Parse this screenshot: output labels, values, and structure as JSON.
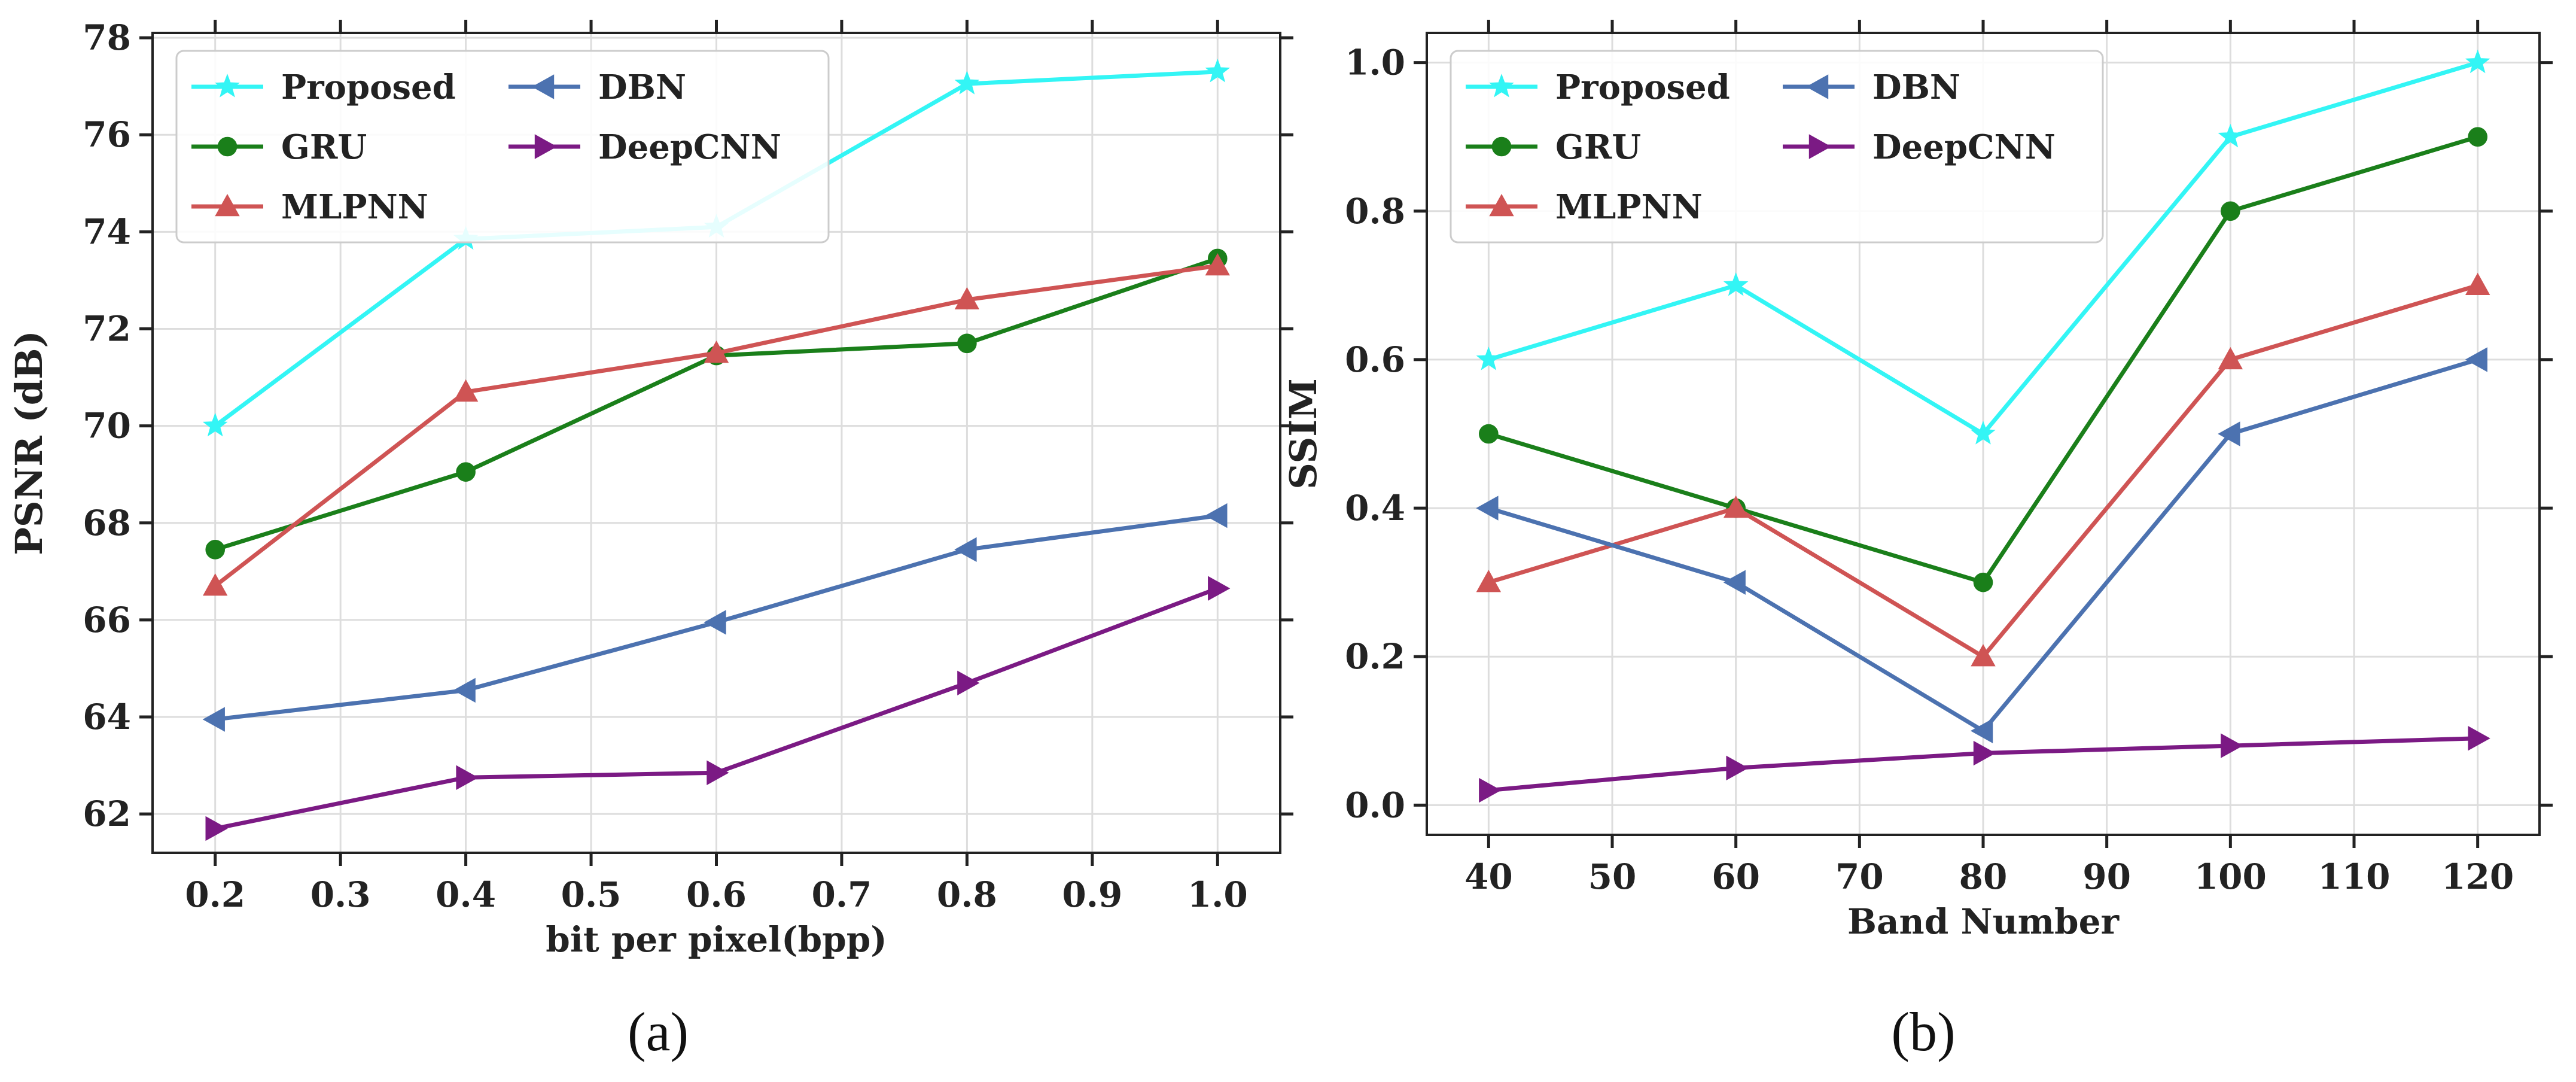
{
  "chart_data": [
    {
      "type": "line",
      "caption": "(a)",
      "title": "",
      "xlabel": "bit per pixel(bpp)",
      "ylabel": "PSNR (dB)",
      "xlim": [
        0.15,
        1.05
      ],
      "ylim": [
        61.2,
        78.1
      ],
      "xticks": [
        0.2,
        0.3,
        0.4,
        0.5,
        0.6,
        0.7,
        0.8,
        0.9,
        1.0
      ],
      "xtick_labels": [
        "0.2",
        "0.3",
        "0.4",
        "0.5",
        "0.6",
        "0.7",
        "0.8",
        "0.9",
        "1.0"
      ],
      "yticks": [
        62,
        64,
        66,
        68,
        70,
        72,
        74,
        76,
        78
      ],
      "ytick_labels": [
        "62",
        "64",
        "66",
        "68",
        "70",
        "72",
        "74",
        "76",
        "78"
      ],
      "grid": true,
      "legend_position": "top-left",
      "legend_columns": 2,
      "x": [
        0.2,
        0.4,
        0.6,
        0.8,
        1.0
      ],
      "series": [
        {
          "name": "Proposed",
          "color": "#33f5f5",
          "marker": "star",
          "values": [
            70.0,
            73.85,
            74.1,
            77.05,
            77.3
          ]
        },
        {
          "name": "GRU",
          "color": "#1a7f1a",
          "marker": "circle",
          "values": [
            67.45,
            69.05,
            71.45,
            71.7,
            73.45
          ]
        },
        {
          "name": "MLPNN",
          "color": "#cf5454",
          "marker": "triangle-up",
          "values": [
            66.7,
            70.7,
            71.5,
            72.6,
            73.3
          ]
        },
        {
          "name": "DBN",
          "color": "#4c72b0",
          "marker": "triangle-left",
          "values": [
            63.95,
            64.55,
            65.95,
            67.45,
            68.15
          ]
        },
        {
          "name": "DeepCNN",
          "color": "#7b1a84",
          "marker": "triangle-right",
          "values": [
            61.7,
            62.75,
            62.85,
            64.7,
            66.65
          ]
        }
      ]
    },
    {
      "type": "line",
      "caption": "(b)",
      "title": "",
      "xlabel": "Band Number",
      "ylabel": "SSIM",
      "xlim": [
        35,
        125
      ],
      "ylim": [
        -0.04,
        1.04
      ],
      "xticks": [
        40,
        50,
        60,
        70,
        80,
        90,
        100,
        110,
        120
      ],
      "xtick_labels": [
        "40",
        "50",
        "60",
        "70",
        "80",
        "90",
        "100",
        "110",
        "120"
      ],
      "yticks": [
        0.0,
        0.2,
        0.4,
        0.6,
        0.8,
        1.0
      ],
      "ytick_labels": [
        "0.0",
        "0.2",
        "0.4",
        "0.6",
        "0.8",
        "1.0"
      ],
      "grid": true,
      "legend_position": "top-left",
      "legend_columns": 2,
      "x": [
        40,
        60,
        80,
        100,
        120
      ],
      "series": [
        {
          "name": "Proposed",
          "color": "#33f5f5",
          "marker": "star",
          "values": [
            0.6,
            0.7,
            0.5,
            0.9,
            1.0
          ]
        },
        {
          "name": "GRU",
          "color": "#1a7f1a",
          "marker": "circle",
          "values": [
            0.5,
            0.4,
            0.3,
            0.8,
            0.9
          ]
        },
        {
          "name": "MLPNN",
          "color": "#cf5454",
          "marker": "triangle-up",
          "values": [
            0.3,
            0.4,
            0.2,
            0.6,
            0.7
          ]
        },
        {
          "name": "DBN",
          "color": "#4c72b0",
          "marker": "triangle-left",
          "values": [
            0.4,
            0.3,
            0.1,
            0.5,
            0.6
          ]
        },
        {
          "name": "DeepCNN",
          "color": "#7b1a84",
          "marker": "triangle-right",
          "values": [
            0.02,
            0.05,
            0.07,
            0.08,
            0.09
          ]
        }
      ]
    }
  ]
}
